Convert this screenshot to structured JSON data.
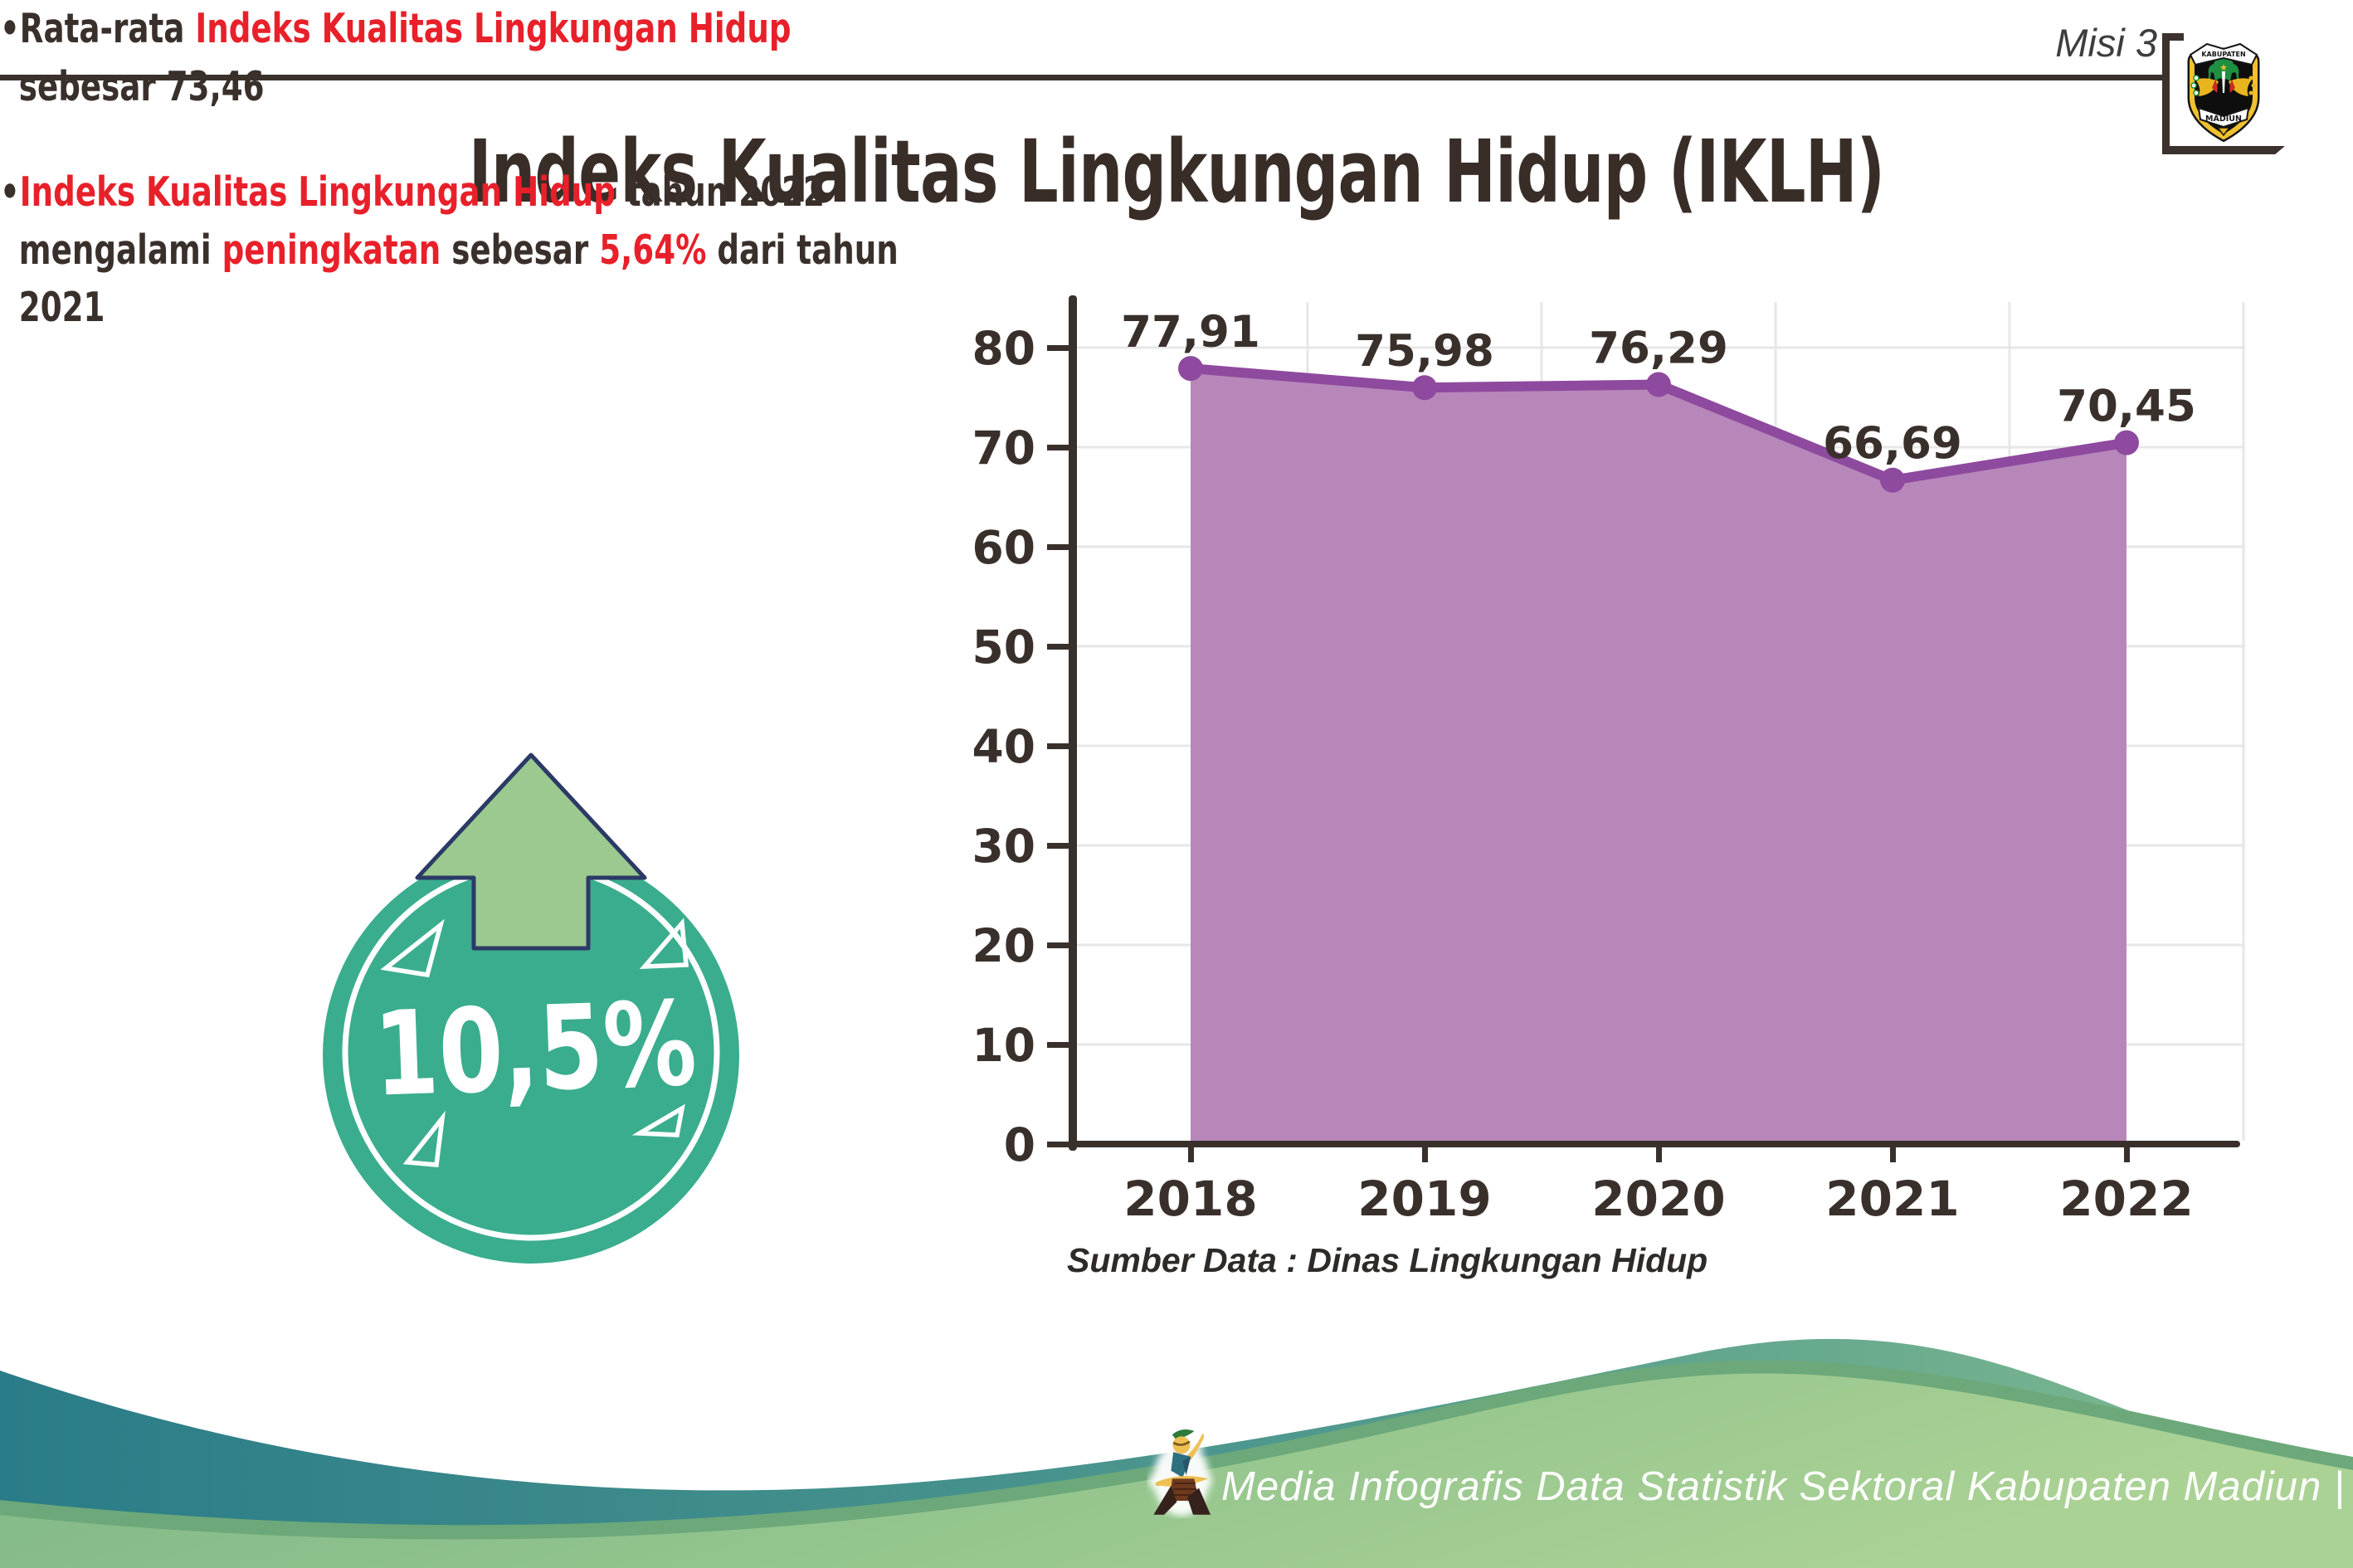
{
  "header": {
    "misi_label": "Misi 3",
    "logo": {
      "top_text": "KABUPATEN",
      "bottom_text": "MADIUN"
    }
  },
  "title": "Indeks Kualitas Lingkungan Hidup (IKLH)",
  "bullets": [
    {
      "marker": "•",
      "s1": "Rata-rata ",
      "s2": "Indeks Kualitas Lingkungan Hidup",
      "s3": " sebesar 73,46"
    },
    {
      "marker": "•",
      "s1": "Indeks Kualitas Lingkungan Hidup",
      "s2": " tahun 2022 mengalami ",
      "s3": "peningkatan",
      "s4": " sebesar ",
      "s5": "5,64%",
      "s6": " dari tahun 2021"
    }
  ],
  "badge": {
    "value_label": "10,5%"
  },
  "chart_data": {
    "type": "area",
    "title": "",
    "categories": [
      "2018",
      "2019",
      "2020",
      "2021",
      "2022"
    ],
    "series": [
      {
        "name": "IKLH",
        "values": [
          77.91,
          75.98,
          76.29,
          66.69,
          70.45
        ]
      }
    ],
    "value_labels": [
      "77,91",
      "75,98",
      "76,29",
      "66,69",
      "70,45"
    ],
    "xlabel": "",
    "ylabel": "",
    "ylim": [
      0,
      80
    ],
    "yticks": [
      0,
      10,
      20,
      30,
      40,
      50,
      60,
      70,
      80
    ],
    "grid": true,
    "legend": false,
    "line_color": "#8e4a9e",
    "area_color": "#b787ba",
    "axis_color": "#39302c",
    "label_color": "#39302c",
    "grid_color": "#e7e7e7"
  },
  "source_note": "Sumber Data : Dinas Lingkungan Hidup",
  "footer": {
    "credit": "Media Infografis Data Statistik Sektoral Kabupaten Madiun |"
  },
  "colors": {
    "accent_red": "#e8202a",
    "text_dark": "#3a302b",
    "badge_teal": "#3aad8e",
    "arrow_green": "#9cc98f",
    "footer_teal": "#2a7c88",
    "footer_green": "#8fc28c"
  }
}
